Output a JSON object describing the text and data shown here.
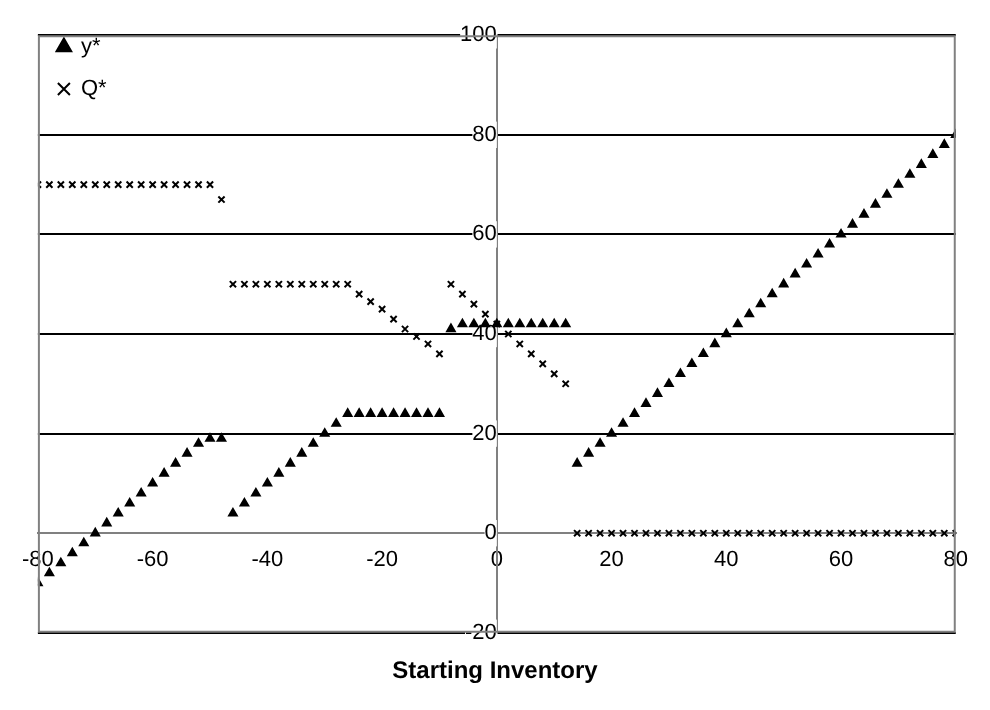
{
  "chart_data": {
    "type": "scatter",
    "xlabel": "Starting Inventory",
    "x": [
      -80,
      -78,
      -76,
      -74,
      -72,
      -70,
      -68,
      -66,
      -64,
      -62,
      -60,
      -58,
      -56,
      -54,
      -52,
      -50,
      -48,
      -46,
      -44,
      -42,
      -40,
      -38,
      -36,
      -34,
      -32,
      -30,
      -28,
      -26,
      -24,
      -22,
      -20,
      -18,
      -16,
      -14,
      -12,
      -10,
      -8,
      -6,
      -4,
      -2,
      0,
      2,
      4,
      6,
      8,
      10,
      12,
      14,
      16,
      18,
      20,
      22,
      24,
      26,
      28,
      30,
      32,
      34,
      36,
      38,
      40,
      42,
      44,
      46,
      48,
      50,
      52,
      54,
      56,
      58,
      60,
      62,
      64,
      66,
      68,
      70,
      72,
      74,
      76,
      78,
      80
    ],
    "series": [
      {
        "name": "y*",
        "color": "#000000",
        "marker": "triangle",
        "values": [
          -10,
          -8,
          -6,
          -4,
          -2,
          0,
          2,
          4,
          6,
          8,
          10,
          12,
          14,
          16,
          18,
          19,
          19,
          4,
          6,
          8,
          10,
          12,
          14,
          16,
          18,
          20,
          22,
          24,
          24,
          24,
          24,
          24,
          24,
          24,
          24,
          24,
          41,
          42,
          42,
          42,
          42,
          42,
          42,
          42,
          42,
          42,
          42,
          14,
          16,
          18,
          20,
          22,
          24,
          26,
          28,
          30,
          32,
          34,
          36,
          38,
          40,
          42,
          44,
          46,
          48,
          50,
          52,
          54,
          56,
          58,
          60,
          62,
          64,
          66,
          68,
          70,
          72,
          74,
          76,
          78,
          80
        ]
      },
      {
        "name": "Q*",
        "color": "#000000",
        "marker": "cross",
        "values": [
          70,
          70,
          70,
          70,
          70,
          70,
          70,
          70,
          70,
          70,
          70,
          70,
          70,
          70,
          70,
          70,
          67,
          50,
          50,
          50,
          50,
          50,
          50,
          50,
          50,
          50,
          50,
          50,
          48,
          46.5,
          45,
          43,
          41,
          39.5,
          38,
          36,
          50,
          48,
          46,
          44,
          42,
          40,
          38,
          36,
          34,
          32,
          30,
          0,
          0,
          0,
          0,
          0,
          0,
          0,
          0,
          0,
          0,
          0,
          0,
          0,
          0,
          0,
          0,
          0,
          0,
          0,
          0,
          0,
          0,
          0,
          0,
          0,
          0,
          0,
          0,
          0,
          0,
          0,
          0,
          0,
          0
        ]
      }
    ],
    "xlim": [
      -80,
      80
    ],
    "xticks": [
      -80,
      -60,
      -40,
      -20,
      0,
      20,
      40,
      60,
      80
    ],
    "ylim": [
      -20,
      100
    ],
    "yticks": [
      -20,
      0,
      20,
      40,
      60,
      80,
      100
    ],
    "grid": "y",
    "legend": "top left"
  }
}
